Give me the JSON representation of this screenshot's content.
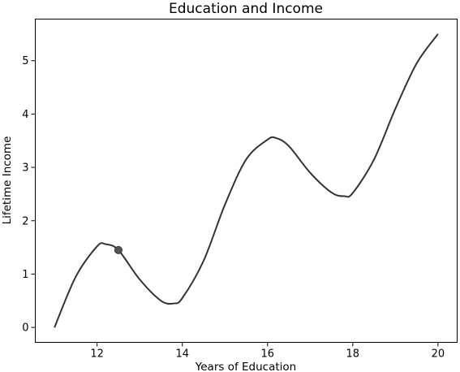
{
  "chart_data": {
    "type": "line",
    "title": "Education and Income",
    "xlabel": "Years of Education",
    "ylabel": "Lifetime Income",
    "xlim": [
      10.55,
      20.45
    ],
    "ylim": [
      -0.28,
      5.78
    ],
    "xticks": [
      12,
      14,
      16,
      18,
      20
    ],
    "yticks": [
      0,
      1,
      2,
      3,
      4,
      5
    ],
    "grid": false,
    "colors": {
      "line": "#333333",
      "marker": "#555555"
    },
    "series": [
      {
        "x": [
          11.0,
          11.5,
          12.0,
          12.2,
          12.5,
          13.0,
          13.5,
          13.8,
          14.0,
          14.5,
          15.0,
          15.5,
          16.0,
          16.2,
          16.5,
          17.0,
          17.5,
          17.8,
          18.0,
          18.5,
          19.0,
          19.5,
          20.0
        ],
        "y": [
          0.0,
          0.95,
          1.52,
          1.56,
          1.45,
          0.9,
          0.5,
          0.45,
          0.55,
          1.25,
          2.3,
          3.15,
          3.52,
          3.55,
          3.4,
          2.9,
          2.53,
          2.46,
          2.52,
          3.15,
          4.1,
          4.95,
          5.5
        ]
      }
    ],
    "marker": {
      "x": 12.5,
      "y": 1.45
    }
  }
}
